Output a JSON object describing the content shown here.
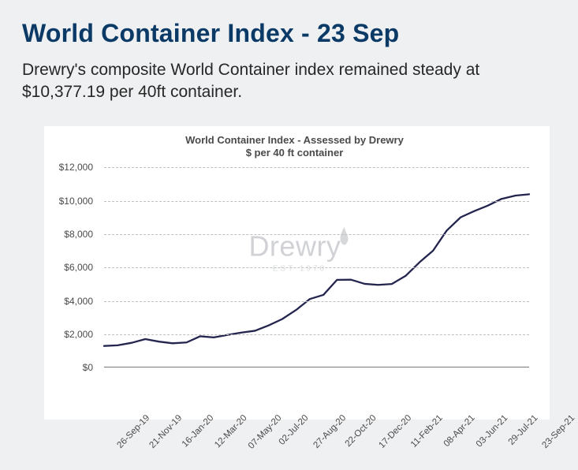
{
  "header": {
    "title": "World Container Index - 23 Sep",
    "subtitle": "Drewry's composite World Container index remained steady at $10,377.19 per 40ft container."
  },
  "chart": {
    "type": "line",
    "title_line1": "World Container Index - Assessed by Drewry",
    "title_line2": "$ per 40 ft container",
    "title_fontsize": 13,
    "title_color": "#4a4a4a",
    "background_color": "#ffffff",
    "page_background": "#eef0f2",
    "grid_color": "#bfbfbf",
    "axis_color": "#777777",
    "label_color": "#4a4a4a",
    "label_fontsize": 12,
    "xlabel_fontsize": 11.5,
    "line_color": "#23254e",
    "line_width": 2.3,
    "ylim": [
      0,
      12000
    ],
    "ytick_step": 2000,
    "yticks": [
      0,
      2000,
      4000,
      6000,
      8000,
      10000,
      12000
    ],
    "ytick_labels": [
      "$0",
      "$2,000",
      "$4,000",
      "$6,000",
      "$8,000",
      "$10,000",
      "$12,000"
    ],
    "x_categories": [
      "26-Sep-19",
      "21-Nov-19",
      "16-Jan-20",
      "12-Mar-20",
      "07-May-20",
      "02-Jul-20",
      "27-Aug-20",
      "22-Oct-20",
      "17-Dec-20",
      "11-Feb-21",
      "08-Apr-21",
      "03-Jun-21",
      "29-Jul-21",
      "23-Sep-21"
    ],
    "series": {
      "values": [
        1290,
        1330,
        1480,
        1700,
        1550,
        1450,
        1500,
        1870,
        1800,
        1950,
        2090,
        2200,
        2520,
        2900,
        3450,
        4100,
        4350,
        5250,
        5260,
        5010,
        4950,
        5000,
        5500,
        6300,
        7000,
        8200,
        9000,
        9370,
        9700,
        10100,
        10300,
        10377
      ],
      "x_positions_pct": [
        0,
        3.2,
        6.5,
        9.7,
        12.9,
        16.1,
        19.4,
        22.6,
        25.8,
        29.0,
        32.3,
        35.5,
        38.7,
        41.9,
        45.2,
        48.4,
        51.6,
        54.8,
        58.1,
        61.3,
        64.5,
        67.7,
        71.0,
        74.2,
        77.4,
        80.6,
        83.9,
        87.1,
        90.3,
        93.5,
        96.8,
        100
      ]
    },
    "watermark": {
      "brand": "Drewry",
      "est": "EST 1970",
      "color": "#d0d2d5"
    }
  }
}
